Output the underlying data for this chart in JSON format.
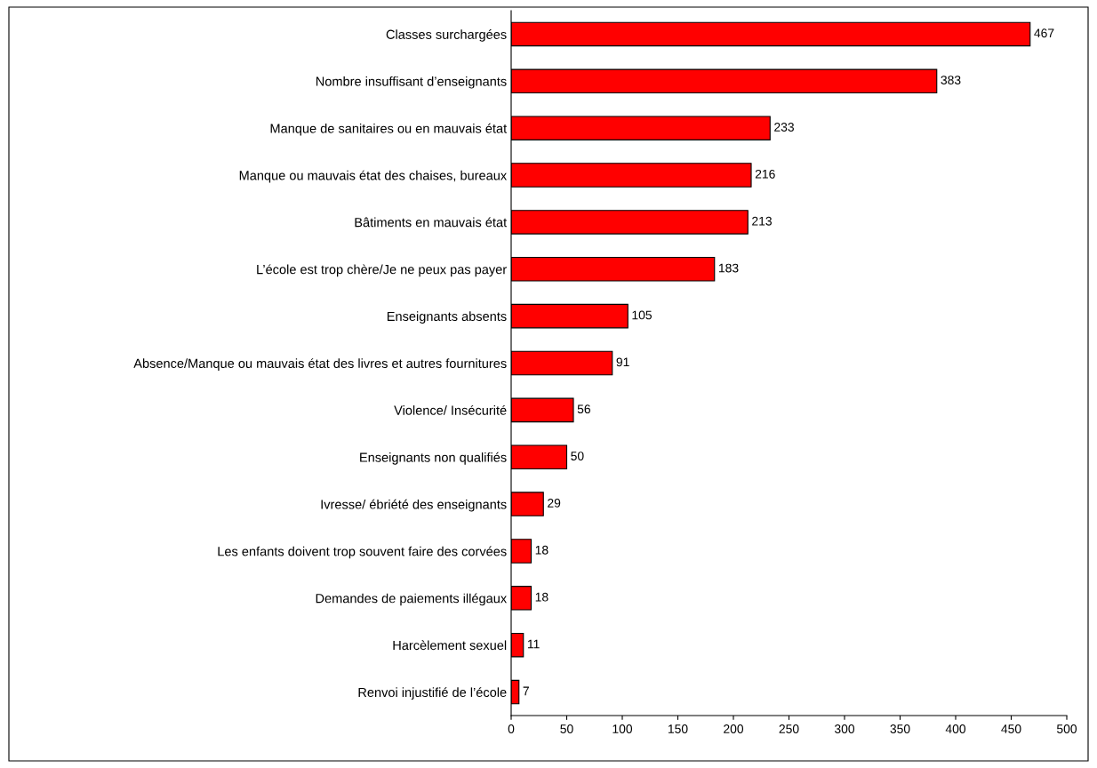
{
  "chart_data": {
    "type": "bar",
    "orientation": "horizontal",
    "categories": [
      "Classes surchargées",
      "Nombre insuffisant d’enseignants",
      "Manque de sanitaires ou en mauvais état",
      "Manque ou mauvais état des chaises, bureaux",
      "Bâtiments en mauvais état",
      "L’école est trop chère/Je ne peux pas payer",
      "Enseignants absents",
      "Absence/Manque ou mauvais état des livres et autres fournitures",
      "Violence/ Insécurité",
      "Enseignants non qualifiés",
      "Ivresse/ ébriété des enseignants",
      "Les enfants doivent trop souvent faire des corvées",
      "Demandes de paiements illégaux",
      "Harcèlement sexuel",
      "Renvoi injustifié de l’école"
    ],
    "values": [
      467,
      383,
      233,
      216,
      213,
      183,
      105,
      91,
      56,
      50,
      29,
      18,
      18,
      11,
      7
    ],
    "color": "#ff0000",
    "xlim": [
      0,
      500
    ],
    "xticks": [
      0,
      50,
      100,
      150,
      200,
      250,
      300,
      350,
      400,
      450,
      500
    ],
    "data_labels": true,
    "grid": false
  }
}
